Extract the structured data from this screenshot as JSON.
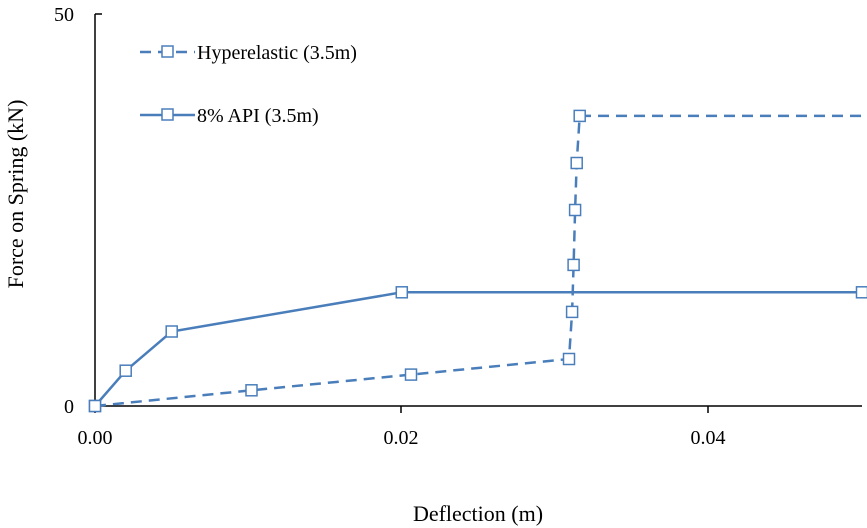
{
  "chart_data": {
    "type": "line",
    "xlabel": "Deflection (m)",
    "ylabel": "Force on Spring (kN)",
    "xlim": [
      0,
      0.05
    ],
    "ylim": [
      0,
      50
    ],
    "x_ticks": [
      "0.00",
      "0.02",
      "0.04"
    ],
    "y_ticks": [
      "0",
      "50"
    ],
    "x_tick_values": [
      0,
      0.02,
      0.04
    ],
    "y_tick_values": [
      0,
      50
    ],
    "grid": false,
    "legend_placement": "top-left",
    "series": [
      {
        "name": "Hyperelastic (3.5m)",
        "line_style": "dashed",
        "marker": "square",
        "color": "#4a7ebb",
        "x": [
          0,
          0.0102,
          0.0206,
          0.0309,
          0.0311,
          0.0312,
          0.0313,
          0.0314,
          0.0316,
          0.05
        ],
        "y": [
          0,
          2.0,
          4.0,
          6.0,
          12.0,
          18.0,
          25.0,
          31.0,
          37.0,
          37.0
        ],
        "markers_on": [
          true,
          true,
          true,
          true,
          true,
          true,
          true,
          true,
          true,
          false
        ]
      },
      {
        "name": "8% API (3.5m)",
        "line_style": "solid",
        "marker": "square",
        "color": "#4a7ebb",
        "x": [
          0,
          0.002,
          0.005,
          0.02,
          0.05
        ],
        "y": [
          0,
          4.5,
          9.5,
          14.5,
          14.5
        ],
        "markers_on": [
          true,
          true,
          true,
          true,
          true
        ]
      }
    ]
  }
}
